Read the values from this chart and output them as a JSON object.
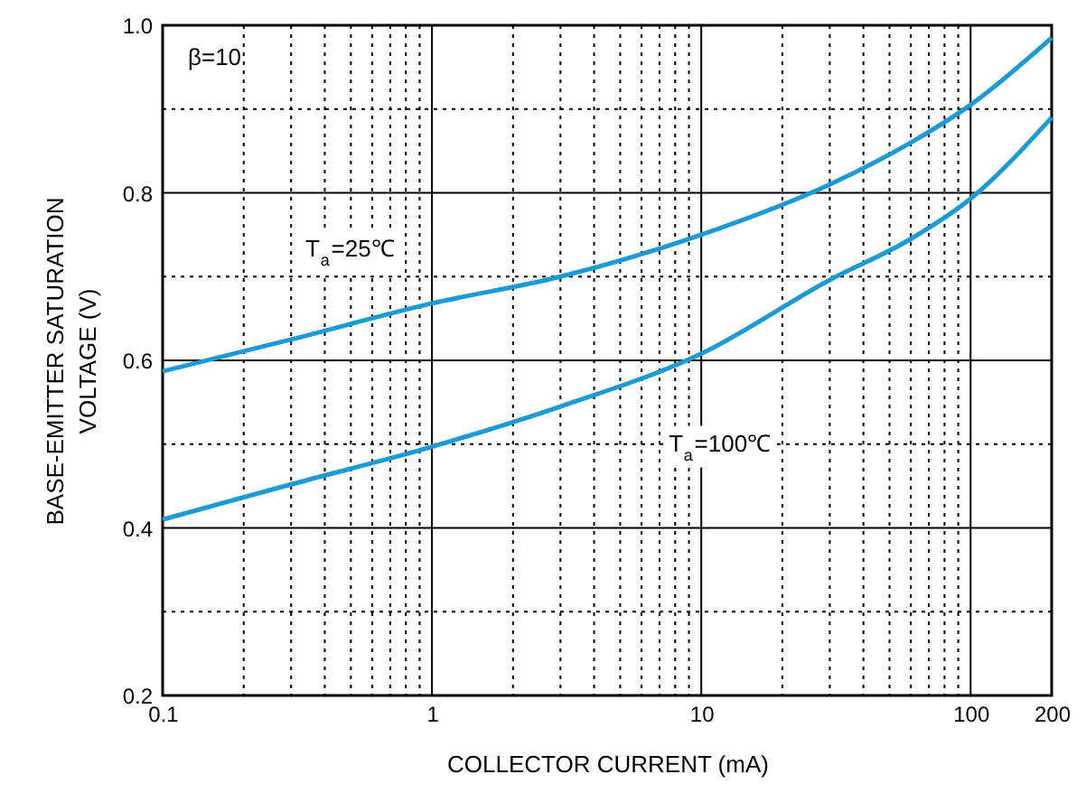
{
  "chart_data": {
    "type": "line",
    "xlabel": "COLLECTOR CURRENT    (mA)",
    "ylabel": "BASE-EMITTER SATURATION\nVOLTAGE    (V)",
    "log": "x",
    "xlim": [
      0.1,
      200
    ],
    "ylim": [
      0.2,
      1.0
    ],
    "xticks": [
      0.1,
      {
        "value": 0.2,
        "label": null
      },
      {
        "value": 0.3,
        "label": null
      },
      {
        "value": 0.4,
        "label": null
      },
      {
        "value": 0.5,
        "label": null
      },
      {
        "value": 0.6,
        "label": null
      },
      {
        "value": 0.7,
        "label": null
      },
      {
        "value": 0.8,
        "label": null
      },
      {
        "value": 0.9,
        "label": null
      },
      1,
      {
        "value": 2,
        "label": null
      },
      {
        "value": 3,
        "label": null
      },
      {
        "value": 4,
        "label": null
      },
      {
        "value": 5,
        "label": null
      },
      {
        "value": 6,
        "label": null
      },
      {
        "value": 7,
        "label": null
      },
      {
        "value": 8,
        "label": null
      },
      {
        "value": 9,
        "label": null
      },
      10,
      {
        "value": 20,
        "label": null
      },
      {
        "value": 30,
        "label": null
      },
      {
        "value": 40,
        "label": null
      },
      {
        "value": 50,
        "label": null
      },
      {
        "value": 60,
        "label": null
      },
      {
        "value": 70,
        "label": null
      },
      {
        "value": 80,
        "label": null
      },
      {
        "value": 90,
        "label": null
      },
      100,
      200
    ],
    "yticks": [
      0.2,
      {
        "value": 0.3,
        "label": null
      },
      0.4,
      {
        "value": 0.5,
        "label": null
      },
      0.6,
      {
        "value": 0.7,
        "label": null
      },
      0.8,
      {
        "value": 0.9,
        "label": null
      },
      {
        "value": 1.0,
        "label": "1.0"
      }
    ],
    "grid": true,
    "marker": "none",
    "line_style": "solid",
    "annotations": [
      "β=10"
    ],
    "series": [
      {
        "name": "T$_{a}$=25℃",
        "color": "#1a9ad6",
        "x": [
          0.1,
          0.3,
          1,
          3,
          10,
          30,
          60,
          100,
          200
        ],
        "values": [
          0.587,
          0.625,
          0.668,
          0.7,
          0.75,
          0.81,
          0.86,
          0.905,
          0.985
        ]
      },
      {
        "name": "T$_{a}$=100℃",
        "color": "#1a9ad6",
        "x": [
          0.1,
          0.3,
          1,
          3,
          10,
          30,
          60,
          100,
          200
        ],
        "values": [
          0.41,
          0.452,
          0.497,
          0.545,
          0.608,
          0.696,
          0.745,
          0.793,
          0.89
        ]
      }
    ]
  }
}
